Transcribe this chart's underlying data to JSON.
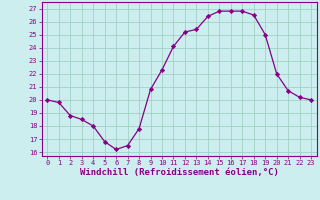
{
  "x": [
    0,
    1,
    2,
    3,
    4,
    5,
    6,
    7,
    8,
    9,
    10,
    11,
    12,
    13,
    14,
    15,
    16,
    17,
    18,
    19,
    20,
    21,
    22,
    23
  ],
  "y": [
    20,
    19.8,
    18.8,
    18.5,
    18.0,
    16.8,
    16.2,
    16.5,
    17.8,
    20.8,
    22.3,
    24.1,
    25.2,
    25.4,
    26.4,
    26.8,
    26.8,
    26.8,
    26.5,
    25.0,
    22.0,
    20.7,
    20.2,
    20.0
  ],
  "line_color": "#880088",
  "marker": "D",
  "markersize": 2.2,
  "linewidth": 0.9,
  "bg_color": "#cceeee",
  "grid_color": "#99ccbb",
  "xlabel": "Windchill (Refroidissement éolien,°C)",
  "xlabel_color": "#880088",
  "xlabel_fontsize": 6.5,
  "ylim": [
    15.7,
    27.5
  ],
  "xlim": [
    -0.5,
    23.5
  ],
  "xtick_labels": [
    "0",
    "1",
    "2",
    "3",
    "4",
    "5",
    "6",
    "7",
    "8",
    "9",
    "10",
    "11",
    "12",
    "13",
    "14",
    "15",
    "16",
    "17",
    "18",
    "19",
    "20",
    "21",
    "22",
    "23"
  ],
  "tick_color": "#880088",
  "tick_fontsize": 5.0,
  "spine_color": "#880088"
}
